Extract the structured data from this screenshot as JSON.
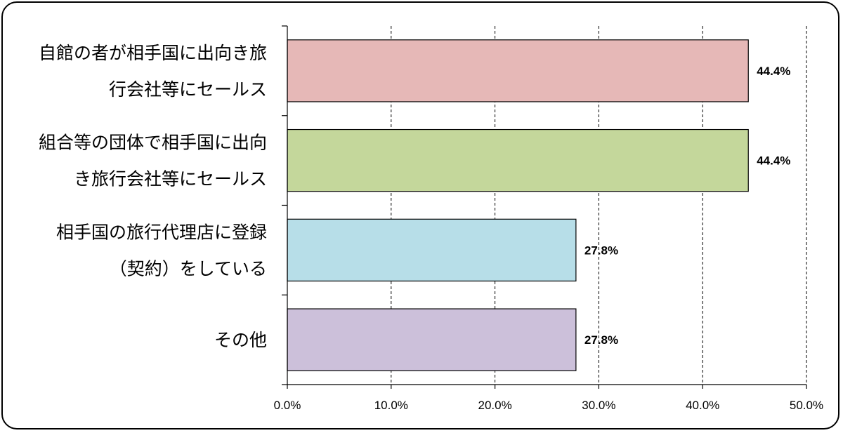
{
  "chart_data": {
    "type": "bar",
    "orientation": "horizontal",
    "categories": [
      [
        "自館の者が相手国に出向き旅",
        "行会社等にセールス"
      ],
      [
        "組合等の団体で相手国に出向",
        "き旅行会社等にセールス"
      ],
      [
        "相手国の旅行代理店に登録",
        "（契約）をしている"
      ],
      [
        "その他"
      ]
    ],
    "values": [
      44.4,
      44.4,
      27.8,
      27.8
    ],
    "value_labels": [
      "44.4%",
      "44.4%",
      "27.8%",
      "27.8%"
    ],
    "bar_colors": [
      "#e6b8b7",
      "#c4d79b",
      "#b7dee8",
      "#ccc0da"
    ],
    "xlim": [
      0,
      50
    ],
    "x_ticks": [
      0,
      10,
      20,
      30,
      40,
      50
    ],
    "x_tick_labels": [
      "0.0%",
      "10.0%",
      "20.0%",
      "30.0%",
      "40.0%",
      "50.0%"
    ],
    "grid": "vertical dashed",
    "title": "",
    "xlabel": "",
    "ylabel": ""
  }
}
